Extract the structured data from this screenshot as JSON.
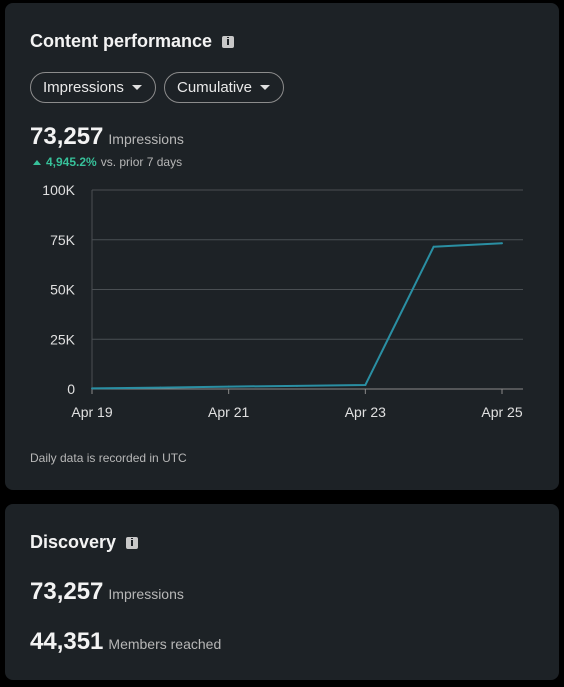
{
  "performance": {
    "title": "Content performance",
    "metric_dropdown": "Impressions",
    "mode_dropdown": "Cumulative",
    "total_value": "73,257",
    "total_label": "Impressions",
    "change_value": "4,945.2%",
    "change_text": "vs. prior 7 days",
    "footnote": "Daily data is recorded in UTC"
  },
  "chart_data": {
    "type": "line",
    "title": "",
    "xlabel": "",
    "ylabel": "",
    "x": [
      "Apr 19",
      "Apr 20",
      "Apr 21",
      "Apr 22",
      "Apr 23",
      "Apr 24",
      "Apr 25"
    ],
    "x_tick_labels": [
      "Apr 19",
      "Apr 21",
      "Apr 23",
      "Apr 25"
    ],
    "y_tick_labels": [
      "100K",
      "75K",
      "50K",
      "25K",
      "0"
    ],
    "ylim": [
      0,
      100000
    ],
    "grid": true,
    "series": [
      {
        "values": [
          300,
          700,
          1200,
          1600,
          2000,
          71500,
          73257
        ],
        "color": "#2a8fa3"
      }
    ]
  },
  "discovery": {
    "title": "Discovery",
    "impressions_value": "73,257",
    "impressions_label": "Impressions",
    "members_value": "44,351",
    "members_label": "Members reached"
  }
}
